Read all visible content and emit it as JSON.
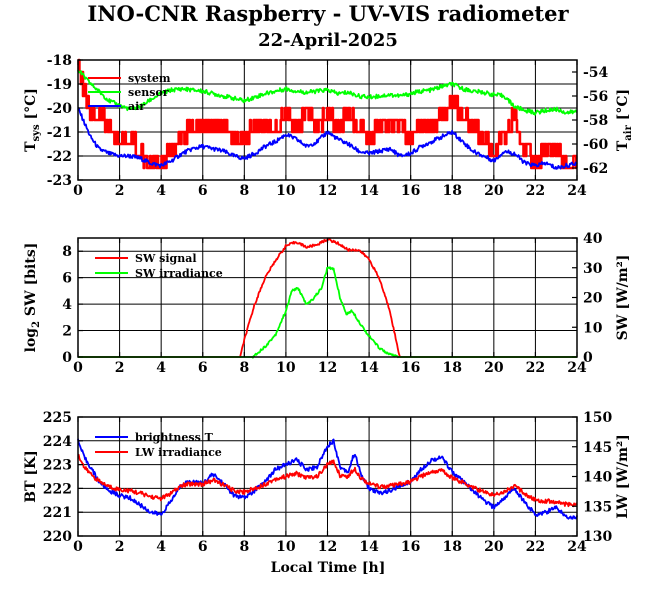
{
  "title": "INO-CNR Raspberry - UV-VIS radiometer",
  "subtitle": "22-April-2025",
  "xlabel": "Local Time [h]",
  "colors": {
    "system": "#ff0000",
    "sensor": "#00ff00",
    "air": "#0000ff",
    "sw_signal": "#ff0000",
    "sw_irradiance": "#00ff00",
    "brightness_t": "#0000ff",
    "lw_irradiance": "#ff0000"
  },
  "chart_data": [
    {
      "id": "temperatures",
      "type": "line",
      "xlim": [
        0,
        24
      ],
      "xticks": [
        0,
        2,
        4,
        6,
        8,
        10,
        12,
        14,
        16,
        18,
        20,
        22,
        24
      ],
      "ylabel_main": "T",
      "ylabel_sub": "sys",
      "ylabel_unit": "[°C]",
      "ylim": [
        -23,
        -18
      ],
      "yticks": [
        -23,
        -22,
        -21,
        -20,
        -19,
        -18
      ],
      "y2label_main": "T",
      "y2label_sub": "air",
      "y2label_unit": "[°C]",
      "y2lim": [
        -63,
        -53
      ],
      "y2ticks": [
        -62,
        -60,
        -58,
        -56,
        -54
      ],
      "legend": "top-left",
      "grid": true,
      "series": [
        {
          "name": "system",
          "axis": "left",
          "step": true,
          "x": [
            0,
            0.3,
            0.6,
            1.0,
            1.5,
            2.0,
            2.5,
            3.0,
            3.3,
            3.6,
            4.0,
            4.5,
            5.0,
            5.5,
            6.0,
            6.5,
            7.0,
            7.5,
            8.0,
            8.5,
            9.0,
            9.5,
            10.0,
            10.5,
            11.0,
            11.5,
            12.0,
            12.5,
            13.0,
            13.5,
            14.0,
            14.5,
            15.0,
            15.5,
            16.0,
            16.5,
            17.0,
            17.5,
            18.0,
            18.5,
            19.0,
            19.5,
            20.0,
            20.5,
            21.0,
            21.5,
            22.0,
            22.5,
            23.0,
            23.5,
            24.0
          ],
          "y": [
            -18.5,
            -19.5,
            -20.5,
            -20.5,
            -21.0,
            -21.5,
            -21.5,
            -22.0,
            -22.5,
            -22.5,
            -22.5,
            -22.0,
            -21.5,
            -21.0,
            -21.0,
            -21.0,
            -21.0,
            -21.5,
            -21.5,
            -21.0,
            -21.0,
            -21.0,
            -20.5,
            -21.0,
            -20.5,
            -21.0,
            -20.5,
            -21.0,
            -20.5,
            -21.0,
            -21.5,
            -21.0,
            -21.0,
            -21.0,
            -21.5,
            -21.0,
            -21.0,
            -20.5,
            -20.0,
            -20.5,
            -21.0,
            -21.5,
            -22.0,
            -21.5,
            -20.5,
            -22.0,
            -22.5,
            -22.0,
            -22.0,
            -22.5,
            -22.5
          ]
        },
        {
          "name": "sensor",
          "axis": "right",
          "x": [
            0,
            0.5,
            1.0,
            1.5,
            2.0,
            2.5,
            3.0,
            3.5,
            4.0,
            4.5,
            5.0,
            5.5,
            6.0,
            6.5,
            7.0,
            7.5,
            8.0,
            8.5,
            9.0,
            9.5,
            10.0,
            10.5,
            11.0,
            11.5,
            12.0,
            12.5,
            13.0,
            13.5,
            14.0,
            14.5,
            15.0,
            15.5,
            16.0,
            16.5,
            17.0,
            17.5,
            18.0,
            18.5,
            19.0,
            19.5,
            20.0,
            20.5,
            21.0,
            21.5,
            22.0,
            22.5,
            23.0,
            23.5,
            24.0
          ],
          "y": [
            -53.8,
            -54.8,
            -55.6,
            -56.4,
            -56.8,
            -57.1,
            -56.9,
            -56.3,
            -55.8,
            -55.5,
            -55.4,
            -55.5,
            -55.6,
            -55.8,
            -56.0,
            -56.2,
            -56.4,
            -56.1,
            -55.8,
            -55.6,
            -55.4,
            -55.6,
            -55.7,
            -55.6,
            -55.5,
            -55.8,
            -55.7,
            -56.0,
            -56.1,
            -56.0,
            -55.9,
            -56.0,
            -55.8,
            -55.6,
            -55.5,
            -55.2,
            -55.0,
            -55.4,
            -55.6,
            -55.7,
            -55.9,
            -56.0,
            -56.9,
            -57.2,
            -57.4,
            -57.2,
            -57.1,
            -57.4,
            -57.3
          ]
        },
        {
          "name": "air",
          "axis": "left",
          "x": [
            0,
            0.3,
            0.6,
            1.0,
            1.5,
            2.0,
            2.5,
            3.0,
            3.5,
            4.0,
            4.5,
            5.0,
            5.5,
            6.0,
            6.5,
            7.0,
            7.5,
            8.0,
            8.5,
            9.0,
            9.5,
            10.0,
            10.5,
            11.0,
            11.5,
            12.0,
            12.5,
            13.0,
            13.5,
            14.0,
            14.5,
            15.0,
            15.5,
            16.0,
            16.5,
            17.0,
            17.5,
            18.0,
            18.5,
            19.0,
            19.5,
            20.0,
            20.5,
            21.0,
            21.5,
            22.0,
            22.5,
            23.0,
            23.5,
            24.0
          ],
          "y": [
            -20.0,
            -20.6,
            -21.2,
            -21.7,
            -21.9,
            -22.0,
            -22.0,
            -22.1,
            -22.3,
            -22.4,
            -22.2,
            -21.9,
            -21.7,
            -21.6,
            -21.7,
            -21.8,
            -22.0,
            -22.1,
            -21.9,
            -21.6,
            -21.4,
            -21.1,
            -21.3,
            -21.6,
            -21.4,
            -21.0,
            -21.3,
            -21.5,
            -21.8,
            -21.9,
            -21.8,
            -21.7,
            -22.0,
            -21.9,
            -21.6,
            -21.4,
            -21.2,
            -21.0,
            -21.4,
            -21.8,
            -22.0,
            -22.2,
            -21.8,
            -21.9,
            -22.3,
            -22.4,
            -22.3,
            -22.5,
            -22.4,
            -22.3
          ]
        }
      ]
    },
    {
      "id": "shortwave",
      "type": "line",
      "xlim": [
        0,
        24
      ],
      "xticks": [
        0,
        2,
        4,
        6,
        8,
        10,
        12,
        14,
        16,
        18,
        20,
        22,
        24
      ],
      "ylabel_main": "log",
      "ylabel_sub": "2",
      "ylabel_unit": " SW [bits]",
      "ylim": [
        0,
        9
      ],
      "yticks": [
        0,
        2,
        4,
        6,
        8
      ],
      "y2label": "SW [W/m²]",
      "y2lim": [
        0,
        40
      ],
      "y2ticks": [
        0,
        10,
        20,
        30,
        40
      ],
      "legend": "top-left",
      "grid": true,
      "series": [
        {
          "name": "SW signal",
          "axis": "left",
          "x": [
            0,
            7.8,
            8.0,
            8.5,
            9.0,
            9.5,
            10.0,
            10.5,
            11.0,
            11.5,
            12.0,
            12.5,
            13.0,
            13.5,
            14.0,
            14.5,
            15.0,
            15.4,
            15.5,
            24.0
          ],
          "y": [
            0,
            0,
            1.3,
            4.0,
            6.0,
            7.3,
            8.4,
            8.7,
            8.3,
            8.5,
            8.9,
            8.6,
            8.1,
            8.1,
            7.4,
            5.9,
            3.5,
            0.5,
            0,
            0
          ]
        },
        {
          "name": "SW irradiance",
          "axis": "right",
          "x": [
            0,
            8.4,
            9.0,
            9.5,
            10.0,
            10.3,
            10.6,
            11.0,
            11.3,
            11.7,
            12.0,
            12.3,
            12.6,
            12.9,
            13.2,
            13.5,
            14.0,
            14.5,
            15.0,
            15.4,
            24.0
          ],
          "y": [
            0,
            0,
            3.5,
            7.5,
            15.5,
            22.5,
            23.0,
            17.5,
            19.5,
            23.0,
            30.0,
            29.5,
            20.0,
            14.5,
            15.5,
            12.0,
            7.0,
            3.0,
            0.8,
            0,
            0
          ]
        }
      ]
    },
    {
      "id": "longwave",
      "type": "line",
      "xlim": [
        0,
        24
      ],
      "xticks": [
        0,
        2,
        4,
        6,
        8,
        10,
        12,
        14,
        16,
        18,
        20,
        22,
        24
      ],
      "ylabel": "BT [K]",
      "ylim": [
        220,
        225
      ],
      "yticks": [
        220,
        221,
        222,
        223,
        224,
        225
      ],
      "y2label": "LW [W/m²]",
      "y2lim": [
        130,
        150
      ],
      "y2ticks": [
        130,
        135,
        140,
        145,
        150
      ],
      "legend": "top-left",
      "grid": true,
      "series": [
        {
          "name": "brightness T",
          "axis": "left",
          "x": [
            0,
            0.3,
            0.6,
            1.0,
            1.5,
            2.0,
            2.5,
            3.0,
            3.5,
            4.0,
            4.5,
            5.0,
            5.5,
            6.0,
            6.5,
            7.0,
            7.5,
            8.0,
            8.5,
            9.0,
            9.5,
            10.0,
            10.5,
            11.0,
            11.5,
            12.0,
            12.3,
            12.6,
            13.0,
            13.3,
            13.6,
            14.0,
            14.5,
            15.0,
            15.5,
            16.0,
            16.5,
            17.0,
            17.5,
            18.0,
            18.5,
            19.0,
            19.5,
            20.0,
            20.5,
            21.0,
            21.5,
            22.0,
            22.5,
            23.0,
            23.5,
            24.0
          ],
          "y": [
            224.0,
            223.3,
            222.9,
            222.3,
            221.9,
            221.7,
            221.6,
            221.3,
            221.0,
            220.9,
            221.5,
            222.2,
            222.3,
            222.2,
            222.6,
            222.2,
            221.7,
            221.6,
            221.9,
            222.3,
            222.8,
            223.0,
            223.2,
            222.8,
            222.9,
            223.8,
            224.0,
            222.9,
            222.7,
            223.5,
            222.6,
            222.0,
            221.8,
            221.9,
            222.1,
            222.3,
            222.8,
            223.2,
            223.3,
            222.7,
            222.3,
            221.9,
            221.5,
            221.2,
            221.6,
            222.0,
            221.4,
            220.9,
            221.0,
            221.2,
            220.8,
            220.8
          ]
        },
        {
          "name": "LW irradiance",
          "axis": "right",
          "x": [
            0,
            0.3,
            0.6,
            1.0,
            1.5,
            2.0,
            2.5,
            3.0,
            3.5,
            4.0,
            4.5,
            5.0,
            5.5,
            6.0,
            6.5,
            7.0,
            7.5,
            8.0,
            8.5,
            9.0,
            9.5,
            10.0,
            10.5,
            11.0,
            11.5,
            12.0,
            12.3,
            12.6,
            13.0,
            13.3,
            13.6,
            14.0,
            14.5,
            15.0,
            15.5,
            16.0,
            16.5,
            17.0,
            17.5,
            18.0,
            18.5,
            19.0,
            19.5,
            20.0,
            20.5,
            21.0,
            21.5,
            22.0,
            22.5,
            23.0,
            23.5,
            24.0
          ],
          "y": [
            143.8,
            141.5,
            140.5,
            139.2,
            138.3,
            137.8,
            137.6,
            137.2,
            136.6,
            136.3,
            137.2,
            138.5,
            138.8,
            138.7,
            139.4,
            138.6,
            137.6,
            137.4,
            138.0,
            138.7,
            139.6,
            140.0,
            140.5,
            139.8,
            140.0,
            142.0,
            142.5,
            140.2,
            140.0,
            141.4,
            139.8,
            138.8,
            138.3,
            138.4,
            138.7,
            139.1,
            140.0,
            140.8,
            141.0,
            139.8,
            139.0,
            138.2,
            137.4,
            136.9,
            137.5,
            138.4,
            137.1,
            136.0,
            135.9,
            135.7,
            135.3,
            135.3
          ]
        }
      ]
    }
  ]
}
